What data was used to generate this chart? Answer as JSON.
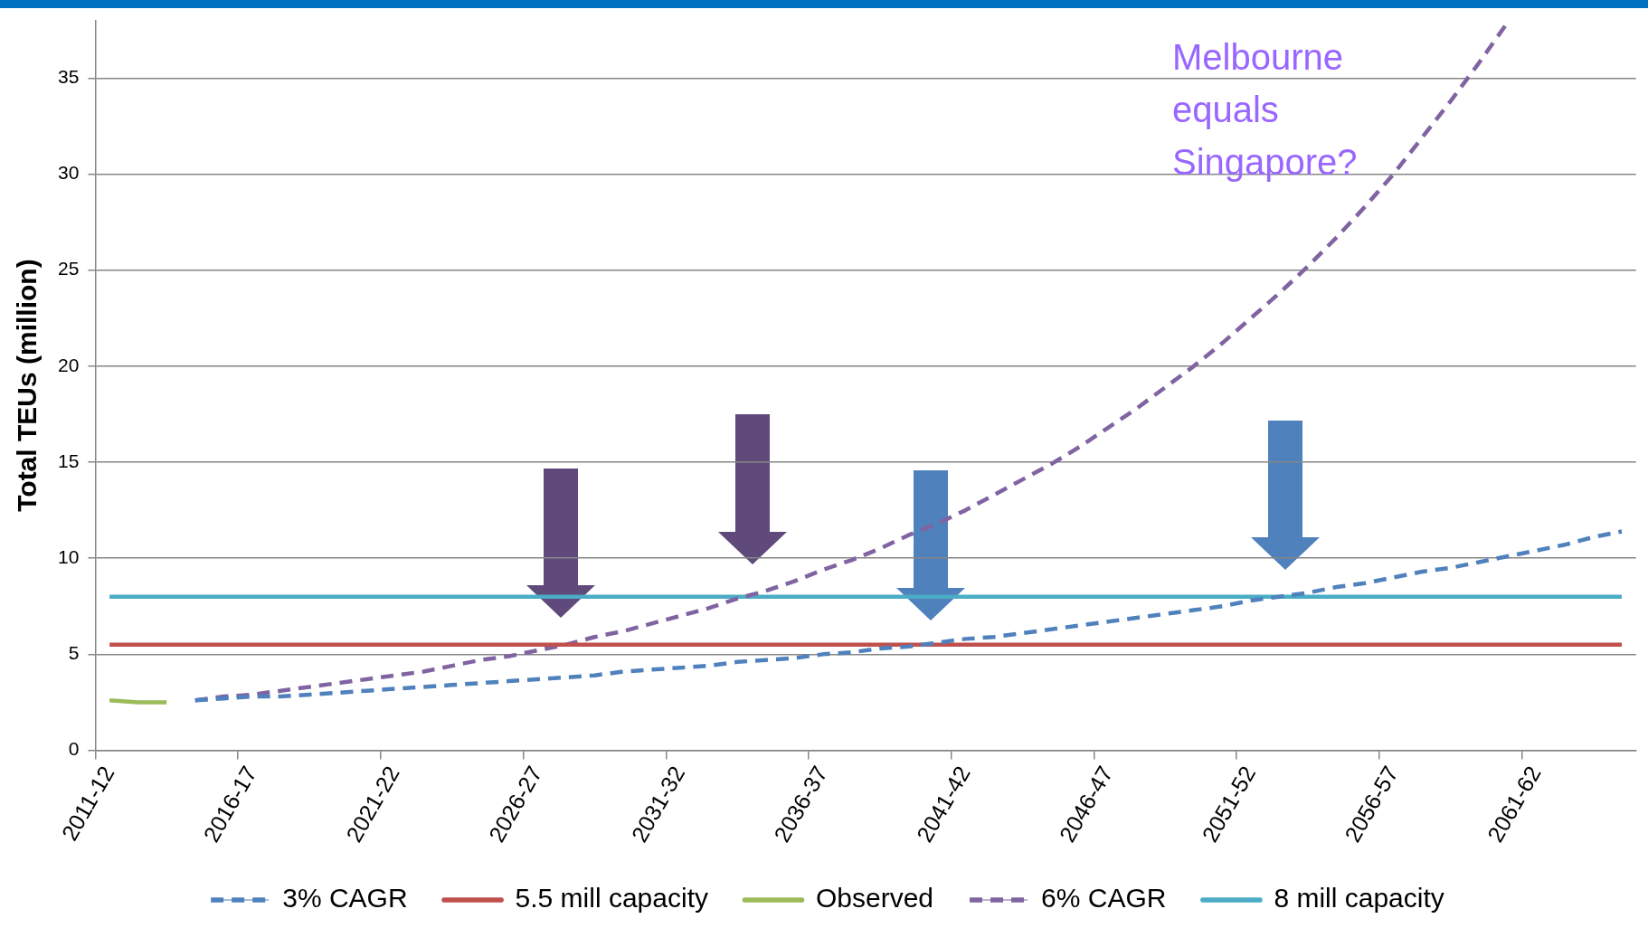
{
  "chart_data": {
    "type": "line",
    "ylabel": "Total TEUs (million)",
    "categories": [
      "2011-12",
      null,
      null,
      null,
      null,
      "2016-17",
      null,
      null,
      null,
      null,
      "2021-22",
      null,
      null,
      null,
      null,
      "2026-27",
      null,
      null,
      null,
      null,
      "2031-32",
      null,
      null,
      null,
      null,
      "2036-37",
      null,
      null,
      null,
      null,
      "2041-42",
      null,
      null,
      null,
      null,
      "2046-47",
      null,
      null,
      null,
      null,
      "2051-52",
      null,
      null,
      null,
      null,
      "2056-57",
      null,
      null,
      null,
      null,
      "2061-62",
      null,
      null,
      null
    ],
    "series": [
      {
        "name": "3% CAGR",
        "color": "#4f81bd",
        "line_style": "dashed",
        "values": [
          null,
          null,
          null,
          2.6,
          2.7,
          2.8,
          2.8,
          2.9,
          3.0,
          3.1,
          3.2,
          3.3,
          3.4,
          3.5,
          3.6,
          3.7,
          3.8,
          3.9,
          4.1,
          4.2,
          4.3,
          4.4,
          4.6,
          4.7,
          4.8,
          5.0,
          5.1,
          5.3,
          5.4,
          5.6,
          5.8,
          5.9,
          6.1,
          6.3,
          6.5,
          6.7,
          6.9,
          7.1,
          7.3,
          7.5,
          7.8,
          8.0,
          8.2,
          8.5,
          8.7,
          9.0,
          9.3,
          9.5,
          9.8,
          10.1,
          10.4,
          10.7,
          11.1,
          11.4
        ]
      },
      {
        "name": "5.5 mill capacity",
        "color": "#c0504d",
        "line_style": "solid",
        "values": [
          5.5,
          5.5,
          5.5,
          5.5,
          5.5,
          5.5,
          5.5,
          5.5,
          5.5,
          5.5,
          5.5,
          5.5,
          5.5,
          5.5,
          5.5,
          5.5,
          5.5,
          5.5,
          5.5,
          5.5,
          5.5,
          5.5,
          5.5,
          5.5,
          5.5,
          5.5,
          5.5,
          5.5,
          5.5,
          5.5,
          5.5,
          5.5,
          5.5,
          5.5,
          5.5,
          5.5,
          5.5,
          5.5,
          5.5,
          5.5,
          5.5,
          5.5,
          5.5,
          5.5,
          5.5,
          5.5,
          5.5,
          5.5,
          5.5,
          5.5,
          5.5,
          5.5,
          5.5,
          5.5
        ]
      },
      {
        "name": "Observed",
        "color": "#9bbb59",
        "line_style": "solid",
        "values": [
          2.6,
          2.5,
          2.5,
          null,
          null,
          null,
          null,
          null,
          null,
          null,
          null,
          null,
          null,
          null,
          null,
          null,
          null,
          null,
          null,
          null,
          null,
          null,
          null,
          null,
          null,
          null,
          null,
          null,
          null,
          null,
          null,
          null,
          null,
          null,
          null,
          null,
          null,
          null,
          null,
          null,
          null,
          null,
          null,
          null,
          null,
          null,
          null,
          null,
          null,
          null,
          null,
          null,
          null,
          null
        ]
      },
      {
        "name": "6% CAGR",
        "color": "#8064a2",
        "line_style": "dashed",
        "values": [
          null,
          null,
          null,
          2.6,
          2.8,
          2.9,
          3.1,
          3.3,
          3.5,
          3.7,
          3.9,
          4.1,
          4.4,
          4.7,
          4.9,
          5.2,
          5.5,
          5.9,
          6.2,
          6.6,
          7.0,
          7.4,
          7.9,
          8.3,
          8.8,
          9.4,
          9.9,
          10.5,
          11.2,
          11.8,
          12.5,
          13.3,
          14.1,
          14.9,
          15.8,
          16.8,
          17.8,
          18.9,
          20.0,
          21.2,
          22.5,
          23.8,
          25.2,
          26.7,
          28.3,
          30.0,
          31.9,
          33.8,
          35.8,
          37.9,
          null,
          null,
          null,
          null
        ]
      },
      {
        "name": "8 mill capacity",
        "color": "#4bacc6",
        "line_style": "solid",
        "values": [
          8,
          8,
          8,
          8,
          8,
          8,
          8,
          8,
          8,
          8,
          8,
          8,
          8,
          8,
          8,
          8,
          8,
          8,
          8,
          8,
          8,
          8,
          8,
          8,
          8,
          8,
          8,
          8,
          8,
          8,
          8,
          8,
          8,
          8,
          8,
          8,
          8,
          8,
          8,
          8,
          8,
          8,
          8,
          8,
          8,
          8,
          8,
          8,
          8,
          8,
          8,
          8,
          8,
          8
        ]
      }
    ],
    "ylim": [
      0,
      38
    ],
    "yticks": [
      0,
      5,
      10,
      15,
      20,
      25,
      30,
      35
    ],
    "grid": "y",
    "legend": "bottom",
    "marker": "none",
    "annotations": [
      "Melbourne equals Singapore?"
    ]
  }
}
